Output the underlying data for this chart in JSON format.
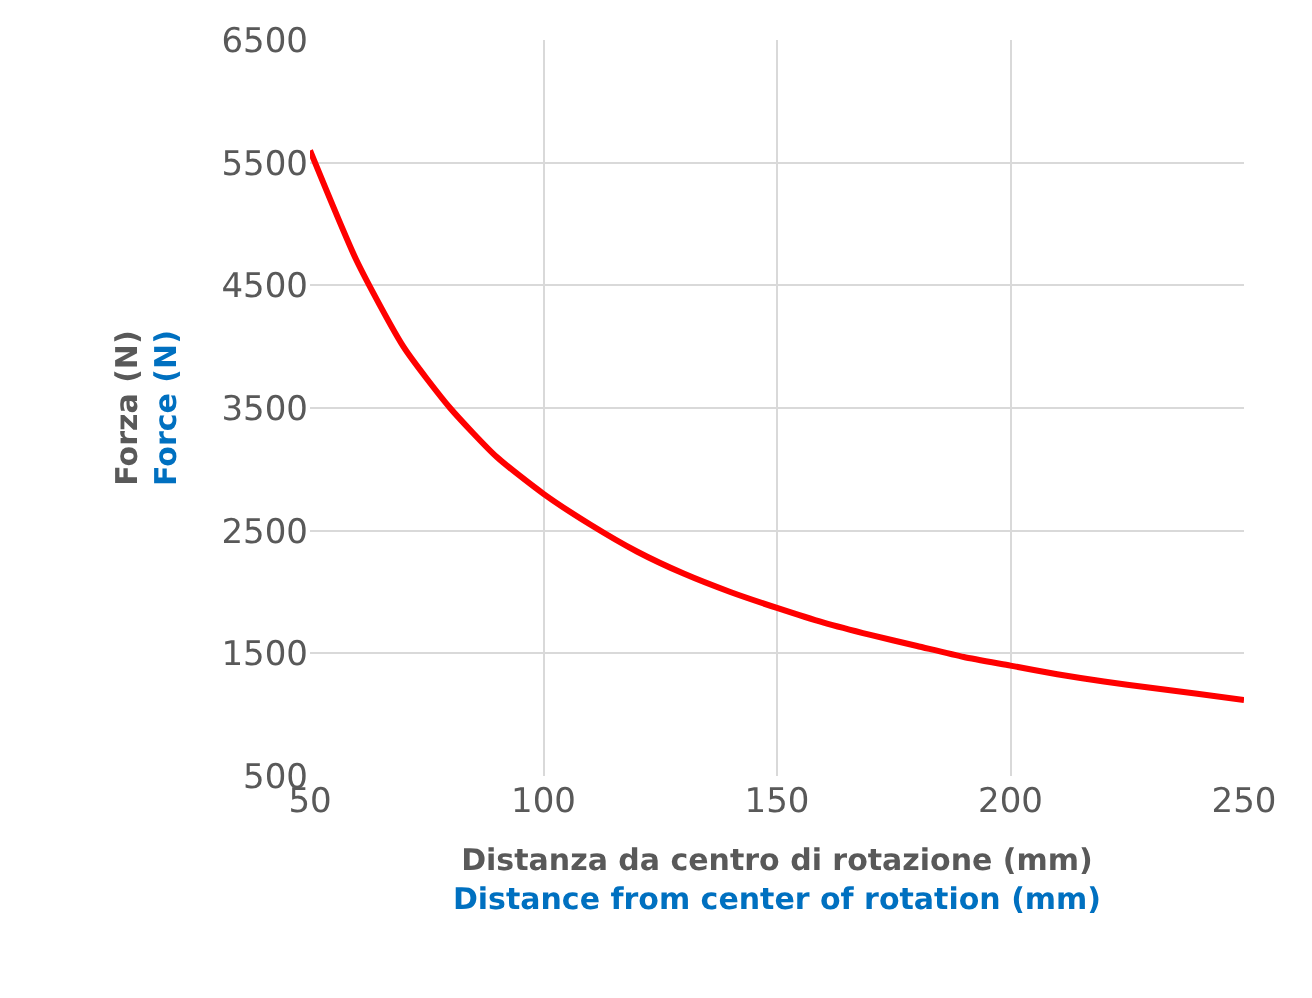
{
  "chart_data": {
    "type": "line",
    "xlabel": "Distanza da centro di rotazione (mm)\nDistance from center of rotation (mm)",
    "ylabel": "Forza (N)\nForce (N)",
    "x": [
      50,
      60,
      70,
      80,
      90,
      100,
      110,
      120,
      130,
      140,
      150,
      160,
      170,
      180,
      190,
      200,
      210,
      220,
      230,
      240,
      250
    ],
    "series": [
      {
        "color": "#ff0000",
        "values": [
          5600,
          4700,
          4000,
          3500,
          3100,
          2800,
          2550,
          2330,
          2150,
          2000,
          1870,
          1750,
          1650,
          1560,
          1470,
          1400,
          1330,
          1270,
          1220,
          1170,
          1120
        ]
      }
    ],
    "xlim": [
      50,
      250
    ],
    "xticks": [
      50,
      100,
      150,
      200,
      250
    ],
    "ylim": [
      500,
      6500
    ],
    "yticks": [
      500,
      1500,
      2500,
      3500,
      4500,
      5500,
      6500
    ],
    "grid": true,
    "marker": "none",
    "line_style": "solid"
  }
}
